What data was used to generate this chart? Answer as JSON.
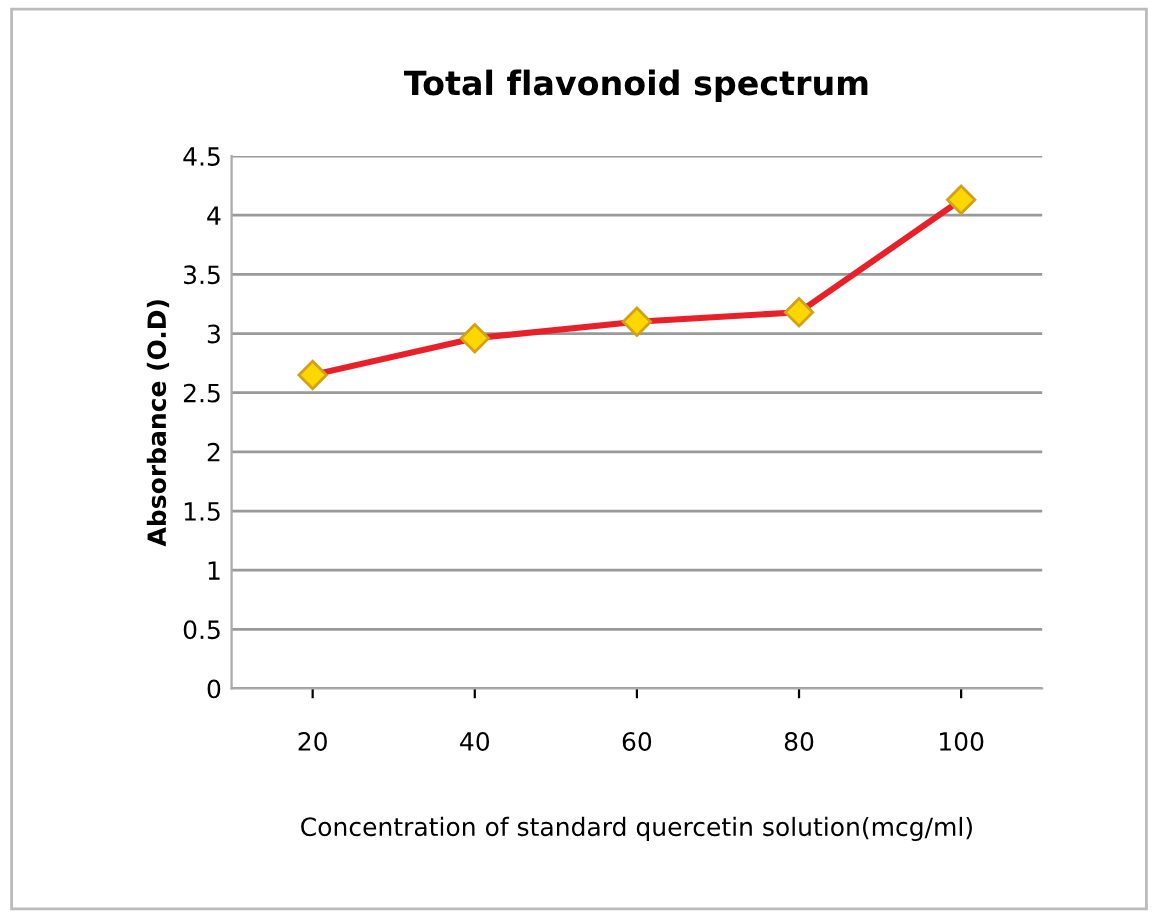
{
  "chart_data": {
    "type": "line",
    "title": "Total flavonoid spectrum",
    "xlabel": "Concentration of standard quercetin solution(mcg/ml)",
    "ylabel": "Absorbance (O.D)",
    "categories": [
      "20",
      "40",
      "60",
      "80",
      "100"
    ],
    "series": [
      {
        "color": "#e8202a",
        "values": [
          2.65,
          2.96,
          3.1,
          3.18,
          4.13
        ]
      }
    ],
    "ylim": [
      0,
      4.5
    ],
    "yticks": [
      0,
      0.5,
      1,
      1.5,
      2,
      2.5,
      3,
      3.5,
      4,
      4.5
    ],
    "grid": "y",
    "legend": false,
    "marker": "diamond",
    "line_style": "solid"
  }
}
